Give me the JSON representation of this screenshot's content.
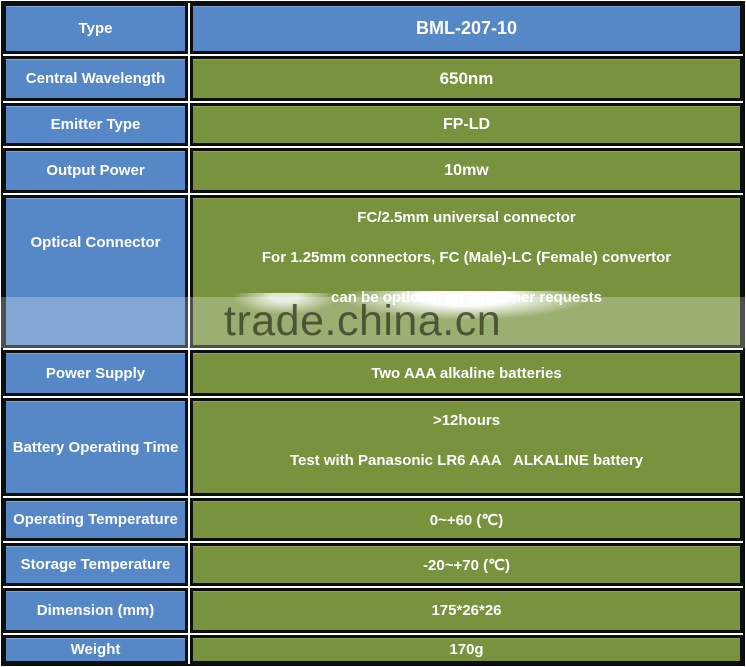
{
  "watermark": {
    "text": "trade.china.cn"
  },
  "colors": {
    "label_blue": "#5687c6",
    "value_green": "#78923e",
    "border_black": "#0e0e0e",
    "cell_text": "#ffffff"
  },
  "table": {
    "rows": [
      {
        "label": "Type",
        "values": [
          "BML-207-10"
        ]
      },
      {
        "label": "Central Wavelength",
        "values": [
          "650nm"
        ]
      },
      {
        "label": "Emitter Type",
        "values": [
          "FP-LD"
        ]
      },
      {
        "label": "Output Power",
        "values": [
          "10mw"
        ]
      },
      {
        "label": "Optical Connector",
        "values": [
          "FC/2.5mm universal connector",
          "For 1.25mm connectors, FC (Male)-LC (Female) convertor",
          "can be optional on customer requests"
        ]
      },
      {
        "label": "Power Supply",
        "values": [
          "Two AAA alkaline batteries"
        ]
      },
      {
        "label": "Battery Operating Time",
        "values": [
          ">12hours",
          "Test with Panasonic LR6 AAA   ALKALINE battery"
        ]
      },
      {
        "label": "Operating Temperature",
        "values": [
          "0~+60 (℃)"
        ]
      },
      {
        "label": "Storage Temperature",
        "values": [
          "-20~+70 (℃)"
        ]
      },
      {
        "label": "Dimension (mm)",
        "values": [
          "175*26*26"
        ]
      },
      {
        "label": "Weight",
        "values": [
          "170g"
        ]
      }
    ]
  }
}
